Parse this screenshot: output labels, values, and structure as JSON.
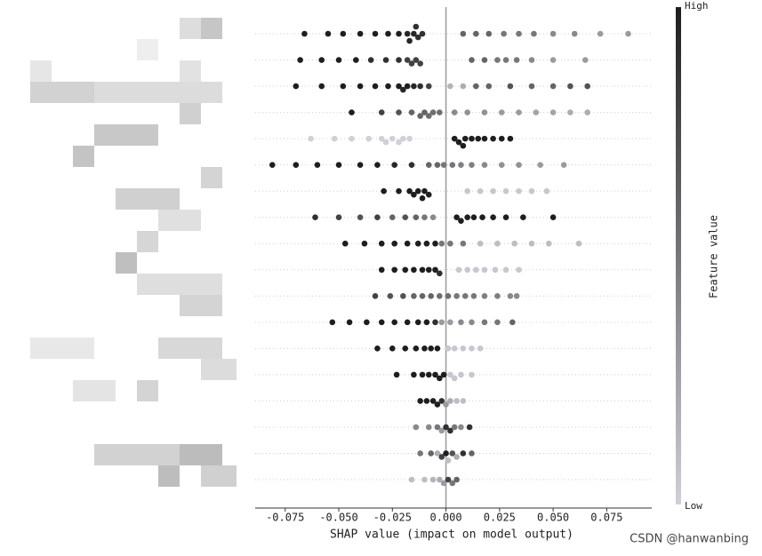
{
  "chart_data": {
    "type": "beeswarm",
    "xlabel": "SHAP value (impact on model output)",
    "xlim": [
      -0.089,
      0.096
    ],
    "xticks": [
      {
        "value": -0.075,
        "label": "-0.075"
      },
      {
        "value": -0.05,
        "label": "-0.050"
      },
      {
        "value": -0.025,
        "label": "-0.025"
      },
      {
        "value": 0,
        "label": "0.000"
      },
      0.025,
      {
        "value": 0.05,
        "label": "0.050"
      },
      0.075
    ],
    "colorbar": {
      "high": "High",
      "low": "Low",
      "label": "Feature value",
      "low_color": "#cfd0d8",
      "high_color": "#1e1e1e"
    },
    "watermark": "CSDN @hanwanbing",
    "series": [
      {
        "values": [
          -0.066,
          -0.055,
          -0.048,
          -0.04,
          -0.033,
          -0.027,
          -0.022,
          -0.018,
          -0.015,
          -0.013,
          -0.011,
          -0.014,
          -0.017,
          0.008,
          0.014,
          0.02,
          0.027,
          0.034,
          0.041,
          0.05,
          0.06,
          0.072,
          0.085
        ],
        "features": [
          1,
          1,
          1,
          1,
          1,
          1,
          1,
          0.95,
          0.95,
          0.9,
          0.9,
          0.9,
          0.95,
          0.6,
          0.6,
          0.6,
          0.5,
          0.5,
          0.5,
          0.4,
          0.4,
          0.3,
          0.3
        ]
      },
      {
        "values": [
          -0.068,
          -0.058,
          -0.05,
          -0.042,
          -0.035,
          -0.028,
          -0.022,
          -0.018,
          -0.014,
          -0.012,
          -0.016,
          0.012,
          0.018,
          0.024,
          0.028,
          0.033,
          0.04,
          0.05,
          0.065
        ],
        "features": [
          1,
          1,
          1,
          1,
          0.9,
          0.9,
          0.9,
          0.8,
          0.8,
          0.8,
          0.8,
          0.6,
          0.6,
          0.5,
          0.5,
          0.5,
          0.4,
          0.3,
          0.3
        ]
      },
      {
        "values": [
          -0.07,
          -0.058,
          -0.048,
          -0.04,
          -0.033,
          -0.027,
          -0.022,
          -0.018,
          -0.015,
          -0.012,
          -0.02,
          -0.008,
          0.002,
          0.008,
          0.014,
          0.02,
          0.03,
          0.04,
          0.05,
          0.058,
          0.066
        ],
        "features": [
          1,
          1,
          1,
          1,
          1,
          1,
          1,
          1,
          0.95,
          0.9,
          0.95,
          0.8,
          0.15,
          0.2,
          0.6,
          0.6,
          0.7,
          0.6,
          0.6,
          0.7,
          0.7
        ]
      },
      {
        "values": [
          -0.044,
          -0.03,
          -0.022,
          -0.016,
          -0.01,
          -0.006,
          -0.003,
          -0.012,
          -0.008,
          0.004,
          0.01,
          0.018,
          0.026,
          0.034,
          0.042,
          0.05,
          0.058,
          0.066
        ],
        "features": [
          1,
          0.8,
          0.7,
          0.6,
          0.6,
          0.55,
          0.55,
          0.6,
          0.55,
          0.4,
          0.35,
          0.35,
          0.3,
          0.3,
          0.25,
          0.25,
          0.2,
          0.2
        ]
      },
      {
        "values": [
          -0.063,
          -0.052,
          -0.044,
          -0.036,
          -0.03,
          -0.025,
          -0.02,
          -0.017,
          -0.022,
          -0.028,
          0.004,
          0.006,
          0.009,
          0.012,
          0.015,
          0.018,
          0.022,
          0.026,
          0.03,
          0.008
        ],
        "features": [
          0,
          0,
          0,
          0,
          0,
          0,
          0,
          0,
          0,
          0,
          1,
          1,
          1,
          1,
          1,
          1,
          1,
          1,
          1,
          1
        ]
      },
      {
        "values": [
          -0.081,
          -0.07,
          -0.06,
          -0.05,
          -0.04,
          -0.032,
          -0.024,
          -0.016,
          -0.008,
          -0.004,
          -0.001,
          0.003,
          0.007,
          0.012,
          0.018,
          0.026,
          0.034,
          0.044,
          0.055
        ],
        "features": [
          1,
          1,
          1,
          1,
          1,
          1,
          0.95,
          0.9,
          0.6,
          0.6,
          0.5,
          0.5,
          0.45,
          0.45,
          0.4,
          0.35,
          0.35,
          0.3,
          0.3
        ]
      },
      {
        "values": [
          -0.029,
          -0.022,
          -0.017,
          -0.013,
          -0.01,
          -0.008,
          -0.011,
          -0.015,
          0.01,
          0.016,
          0.022,
          0.028,
          0.034,
          0.04,
          0.047
        ],
        "features": [
          1,
          1,
          1,
          1,
          1,
          1,
          1,
          1,
          0.05,
          0.05,
          0.05,
          0.05,
          0.05,
          0.05,
          0.05
        ]
      },
      {
        "values": [
          -0.061,
          -0.05,
          -0.04,
          -0.032,
          -0.025,
          -0.019,
          -0.014,
          -0.01,
          -0.006,
          0.005,
          0.007,
          0.01,
          0.013,
          0.017,
          0.022,
          0.028,
          0.036,
          0.05
        ],
        "features": [
          0.9,
          0.8,
          0.7,
          0.8,
          0.6,
          0.7,
          0.6,
          0.5,
          0.4,
          1,
          1,
          1,
          1,
          1,
          1,
          1,
          1,
          1
        ]
      },
      {
        "values": [
          -0.047,
          -0.038,
          -0.03,
          -0.024,
          -0.018,
          -0.013,
          -0.009,
          -0.005,
          -0.002,
          0.002,
          0.008,
          0.016,
          0.024,
          0.032,
          0.04,
          0.048,
          0.062
        ],
        "features": [
          1,
          1,
          1,
          1,
          1,
          1,
          1,
          1,
          0.5,
          0.5,
          0.5,
          0.1,
          0.1,
          0.1,
          0.1,
          0.1,
          0.1
        ]
      },
      {
        "values": [
          -0.03,
          -0.024,
          -0.019,
          -0.015,
          -0.011,
          -0.008,
          -0.005,
          -0.003,
          0.006,
          0.01,
          0.014,
          0.018,
          0.023,
          0.028,
          0.034
        ],
        "features": [
          1,
          1,
          1,
          1,
          1,
          1,
          1,
          0.9,
          0.05,
          0.05,
          0.05,
          0.05,
          0.05,
          0.05,
          0.05
        ]
      },
      {
        "values": [
          -0.033,
          -0.026,
          -0.02,
          -0.015,
          -0.011,
          -0.007,
          -0.003,
          0.001,
          0.005,
          0.009,
          0.013,
          0.018,
          0.024,
          0.03,
          0.033
        ],
        "features": [
          0.8,
          0.7,
          0.7,
          0.6,
          0.6,
          0.6,
          0.55,
          0.55,
          0.5,
          0.5,
          0.5,
          0.45,
          0.45,
          0.4,
          0.4
        ]
      },
      {
        "values": [
          -0.053,
          -0.045,
          -0.037,
          -0.03,
          -0.024,
          -0.018,
          -0.013,
          -0.009,
          -0.005,
          -0.002,
          0.002,
          0.007,
          0.012,
          0.018,
          0.024,
          0.031
        ],
        "features": [
          1,
          1,
          1,
          1,
          1,
          1,
          1,
          1,
          0.9,
          0.3,
          0.3,
          0.4,
          0.4,
          0.5,
          0.5,
          0.6
        ]
      },
      {
        "values": [
          -0.032,
          -0.025,
          -0.019,
          -0.014,
          -0.01,
          -0.007,
          -0.004,
          0.001,
          0.004,
          0.008,
          0.012,
          0.016
        ],
        "features": [
          1,
          1,
          1,
          1,
          1,
          1,
          1,
          0.05,
          0.05,
          0.05,
          0.05,
          0.05
        ]
      },
      {
        "values": [
          -0.023,
          -0.015,
          -0.011,
          -0.008,
          -0.005,
          -0.003,
          -0.001,
          0.002,
          0.004,
          0.007,
          0.012
        ],
        "features": [
          1,
          1,
          1,
          1,
          1,
          1,
          1,
          0.05,
          0.05,
          0.05,
          0.05
        ]
      },
      {
        "values": [
          -0.012,
          -0.009,
          -0.006,
          -0.004,
          -0.002,
          0,
          0.002,
          0.005,
          0.008
        ],
        "features": [
          1,
          1,
          1,
          1,
          0.9,
          0.3,
          0.2,
          0.1,
          0.1
        ]
      },
      {
        "values": [
          -0.014,
          -0.008,
          -0.004,
          -0.002,
          0,
          0.002,
          0.004,
          0.007,
          0.011
        ],
        "features": [
          0.4,
          0.4,
          0.5,
          0.3,
          0.9,
          0.9,
          0.5,
          0.4,
          0.9
        ]
      },
      {
        "values": [
          -0.012,
          -0.007,
          -0.004,
          -0.002,
          0,
          0.001,
          0.003,
          0.005,
          0.008,
          0.012
        ],
        "features": [
          0.5,
          0.6,
          0.2,
          0.8,
          1,
          0.1,
          0.7,
          0.2,
          0.9,
          0.6
        ]
      },
      {
        "values": [
          -0.016,
          -0.01,
          -0.006,
          -0.003,
          -0.001,
          0.001,
          0.003,
          0.005
        ],
        "features": [
          0.1,
          0.1,
          0.15,
          0.2,
          0.3,
          0.8,
          0.5,
          0.6
        ]
      }
    ]
  }
}
